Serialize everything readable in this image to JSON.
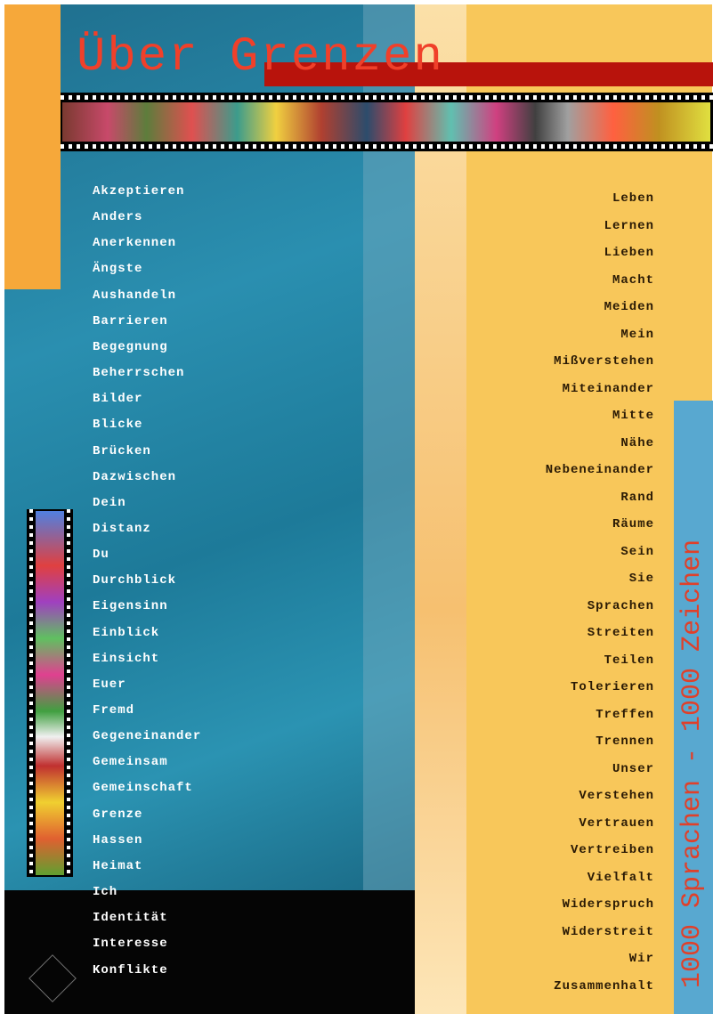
{
  "title": "Über Grenzen",
  "side_title": "1000 Sprachen - 1000 Zeichen",
  "left_words": [
    "Akzeptieren",
    "Anders",
    "Anerkennen",
    "Ängste",
    "Aushandeln",
    "Barrieren",
    "Begegnung",
    "Beherrschen",
    "Bilder",
    "Blicke",
    "Brücken",
    "Dazwischen",
    "Dein",
    "Distanz",
    "Du",
    "Durchblick",
    "Eigensinn",
    "Einblick",
    "Einsicht",
    "Euer",
    "Fremd",
    "Gegeneinander",
    "Gemeinsam",
    "Gemeinschaft",
    "Grenze",
    "Hassen",
    "Heimat",
    "Ich",
    "Identität",
    "Interesse",
    "Konflikte"
  ],
  "right_words": [
    "Leben",
    "Lernen",
    "Lieben",
    "Macht",
    "Meiden",
    "Mein",
    "Mißverstehen",
    "Miteinander",
    "Mitte",
    "Nähe",
    "Nebeneinander",
    "Rand",
    "Räume",
    "Sein",
    "Sie",
    "Sprachen",
    "Streiten",
    "Teilen",
    "Tolerieren",
    "Treffen",
    "Trennen",
    "Unser",
    "Verstehen",
    "Vertrauen",
    "Vertreiben",
    "Vielfalt",
    "Widerspruch",
    "Widerstreit",
    "Wir",
    "Zusammenhalt"
  ]
}
